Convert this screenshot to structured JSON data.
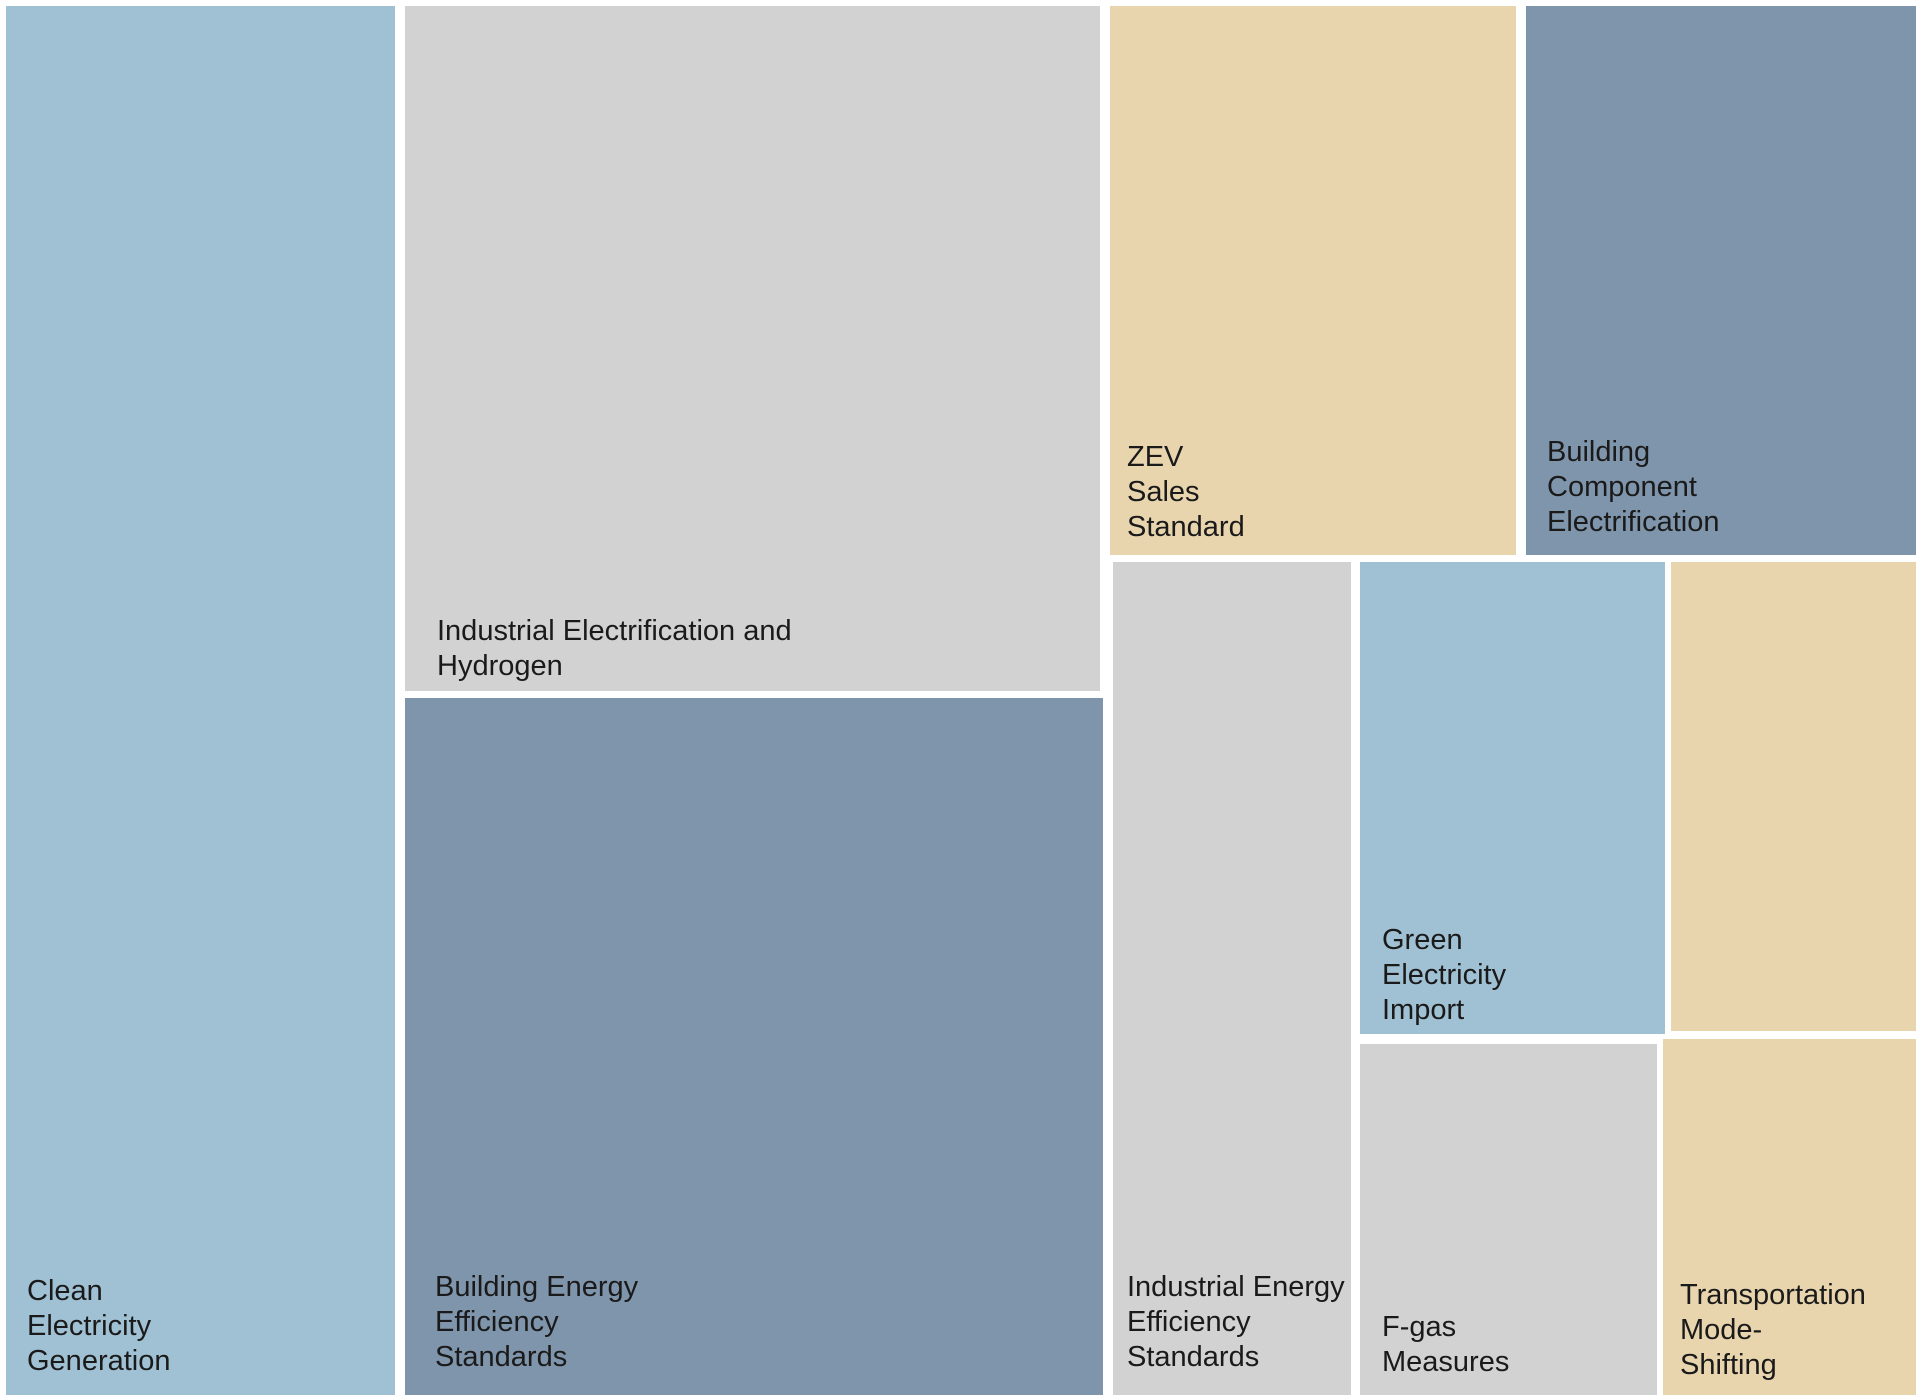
{
  "chart_data": {
    "type": "treemap",
    "colors": {
      "light_blue": "#a0c0d3",
      "light_gray": "#d2d2d2",
      "tan": "#e8d5ae",
      "slate_blue": "#7f95ac"
    },
    "items": [
      {
        "label": "Clean\nElectricity\nGeneration",
        "color": "#a0c0d3"
      },
      {
        "label": "Industrial Electrification and\nHydrogen",
        "color": "#d2d2d2"
      },
      {
        "label": "Building Energy\nEfficiency\nStandards",
        "color": "#7f95ac"
      },
      {
        "label": "ZEV\nSales\nStandard",
        "color": "#e8d5ae"
      },
      {
        "label": "Building\nComponent\nElectrification",
        "color": "#7f95ac"
      },
      {
        "label": "Industrial Energy\nEfficiency\nStandards",
        "color": "#d2d2d2"
      },
      {
        "label": "Green\nElectricity\nImport",
        "color": "#a0c0d3"
      },
      {
        "label": "",
        "color": "#e8d5ae"
      },
      {
        "label": "F-gas\nMeasures",
        "color": "#d2d2d2"
      },
      {
        "label": "Transportation\nMode-\nShifting",
        "color": "#e8d5ae"
      }
    ]
  }
}
